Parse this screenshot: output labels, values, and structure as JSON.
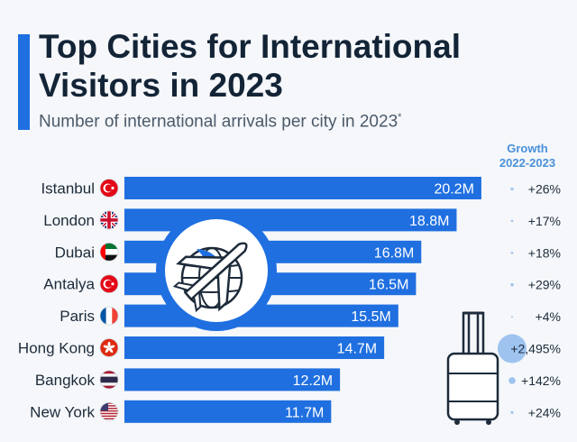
{
  "header": {
    "title": "Top Cities for International Visitors in 2023",
    "subtitle": "Number of international arrivals per city in 2023",
    "subtitle_mark": "*",
    "growth_title": "Growth",
    "growth_period": "2022-2023"
  },
  "colors": {
    "bar": "#1f6fe0",
    "accent": "#1f6fe0",
    "growth_dot": "#9ec3ef",
    "growth_text": "#4a90d9"
  },
  "chart_data": {
    "type": "bar",
    "orientation": "horizontal",
    "categories": [
      "Istanbul",
      "London",
      "Dubai",
      "Antalya",
      "Paris",
      "Hong Kong",
      "Bangkok",
      "New York"
    ],
    "values": [
      20.2,
      18.8,
      16.8,
      16.5,
      15.5,
      14.7,
      12.2,
      11.7
    ],
    "value_labels": [
      "20.2M",
      "18.8M",
      "16.8M",
      "16.5M",
      "15.5M",
      "14.7M",
      "12.2M",
      "11.7M"
    ],
    "growth_values": [
      26,
      17,
      18,
      29,
      4,
      2495,
      142,
      24
    ],
    "growth_labels": [
      "+26%",
      "+17%",
      "+18%",
      "+29%",
      "+4%",
      "+2,495%",
      "+142%",
      "+24%"
    ],
    "flags": [
      "turkey-flag-icon",
      "uk-flag-icon",
      "uae-flag-icon",
      "turkey-flag-icon",
      "france-flag-icon",
      "hong-kong-flag-icon",
      "thailand-flag-icon",
      "usa-flag-icon"
    ],
    "decorations": [
      "airplane-globe-icon",
      "suitcase-icon"
    ]
  }
}
